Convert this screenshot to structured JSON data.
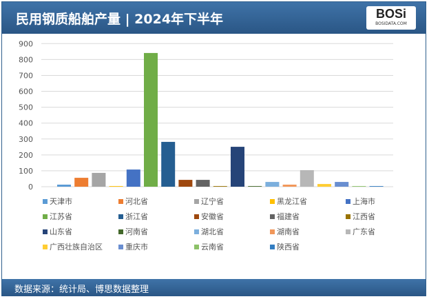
{
  "header": {
    "title": "民用钢质船舶产量 | 2024年下半年",
    "logo_text": "BOSi",
    "logo_sub": "BOSIDATA.COM"
  },
  "footer": {
    "source": "数据来源：统计局、博思数据整理"
  },
  "chart_data": {
    "type": "bar",
    "title": "",
    "ylim": [
      0,
      900
    ],
    "yticks": [
      0,
      100,
      200,
      300,
      400,
      500,
      600,
      700,
      800,
      900
    ],
    "grid": true,
    "legend_position": "bottom",
    "series": [
      {
        "name": "天津市",
        "value": 13,
        "color": "#5b9bd5"
      },
      {
        "name": "河北省",
        "value": 56,
        "color": "#ed7d31"
      },
      {
        "name": "辽宁省",
        "value": 87,
        "color": "#a5a5a5"
      },
      {
        "name": "黑龙江省",
        "value": 4,
        "color": "#ffc000"
      },
      {
        "name": "上海市",
        "value": 108,
        "color": "#4472c4"
      },
      {
        "name": "江苏省",
        "value": 841,
        "color": "#70ad47"
      },
      {
        "name": "浙江省",
        "value": 282,
        "color": "#255e91"
      },
      {
        "name": "安徽省",
        "value": 43,
        "color": "#9e480e"
      },
      {
        "name": "福建省",
        "value": 43,
        "color": "#636363"
      },
      {
        "name": "江西省",
        "value": 4,
        "color": "#997300"
      },
      {
        "name": "山东省",
        "value": 251,
        "color": "#264478"
      },
      {
        "name": "河南省",
        "value": 4,
        "color": "#43682b"
      },
      {
        "name": "湖北省",
        "value": 30,
        "color": "#7cafdd"
      },
      {
        "name": "湖南省",
        "value": 13,
        "color": "#f1975a"
      },
      {
        "name": "广东省",
        "value": 104,
        "color": "#b7b7b7"
      },
      {
        "name": "广西壮族自治区",
        "value": 17,
        "color": "#ffcd33"
      },
      {
        "name": "重庆市",
        "value": 30,
        "color": "#698ed0"
      },
      {
        "name": "云南省",
        "value": 4,
        "color": "#8cc168"
      },
      {
        "name": "陕西省",
        "value": 4,
        "color": "#327dc2"
      }
    ]
  }
}
